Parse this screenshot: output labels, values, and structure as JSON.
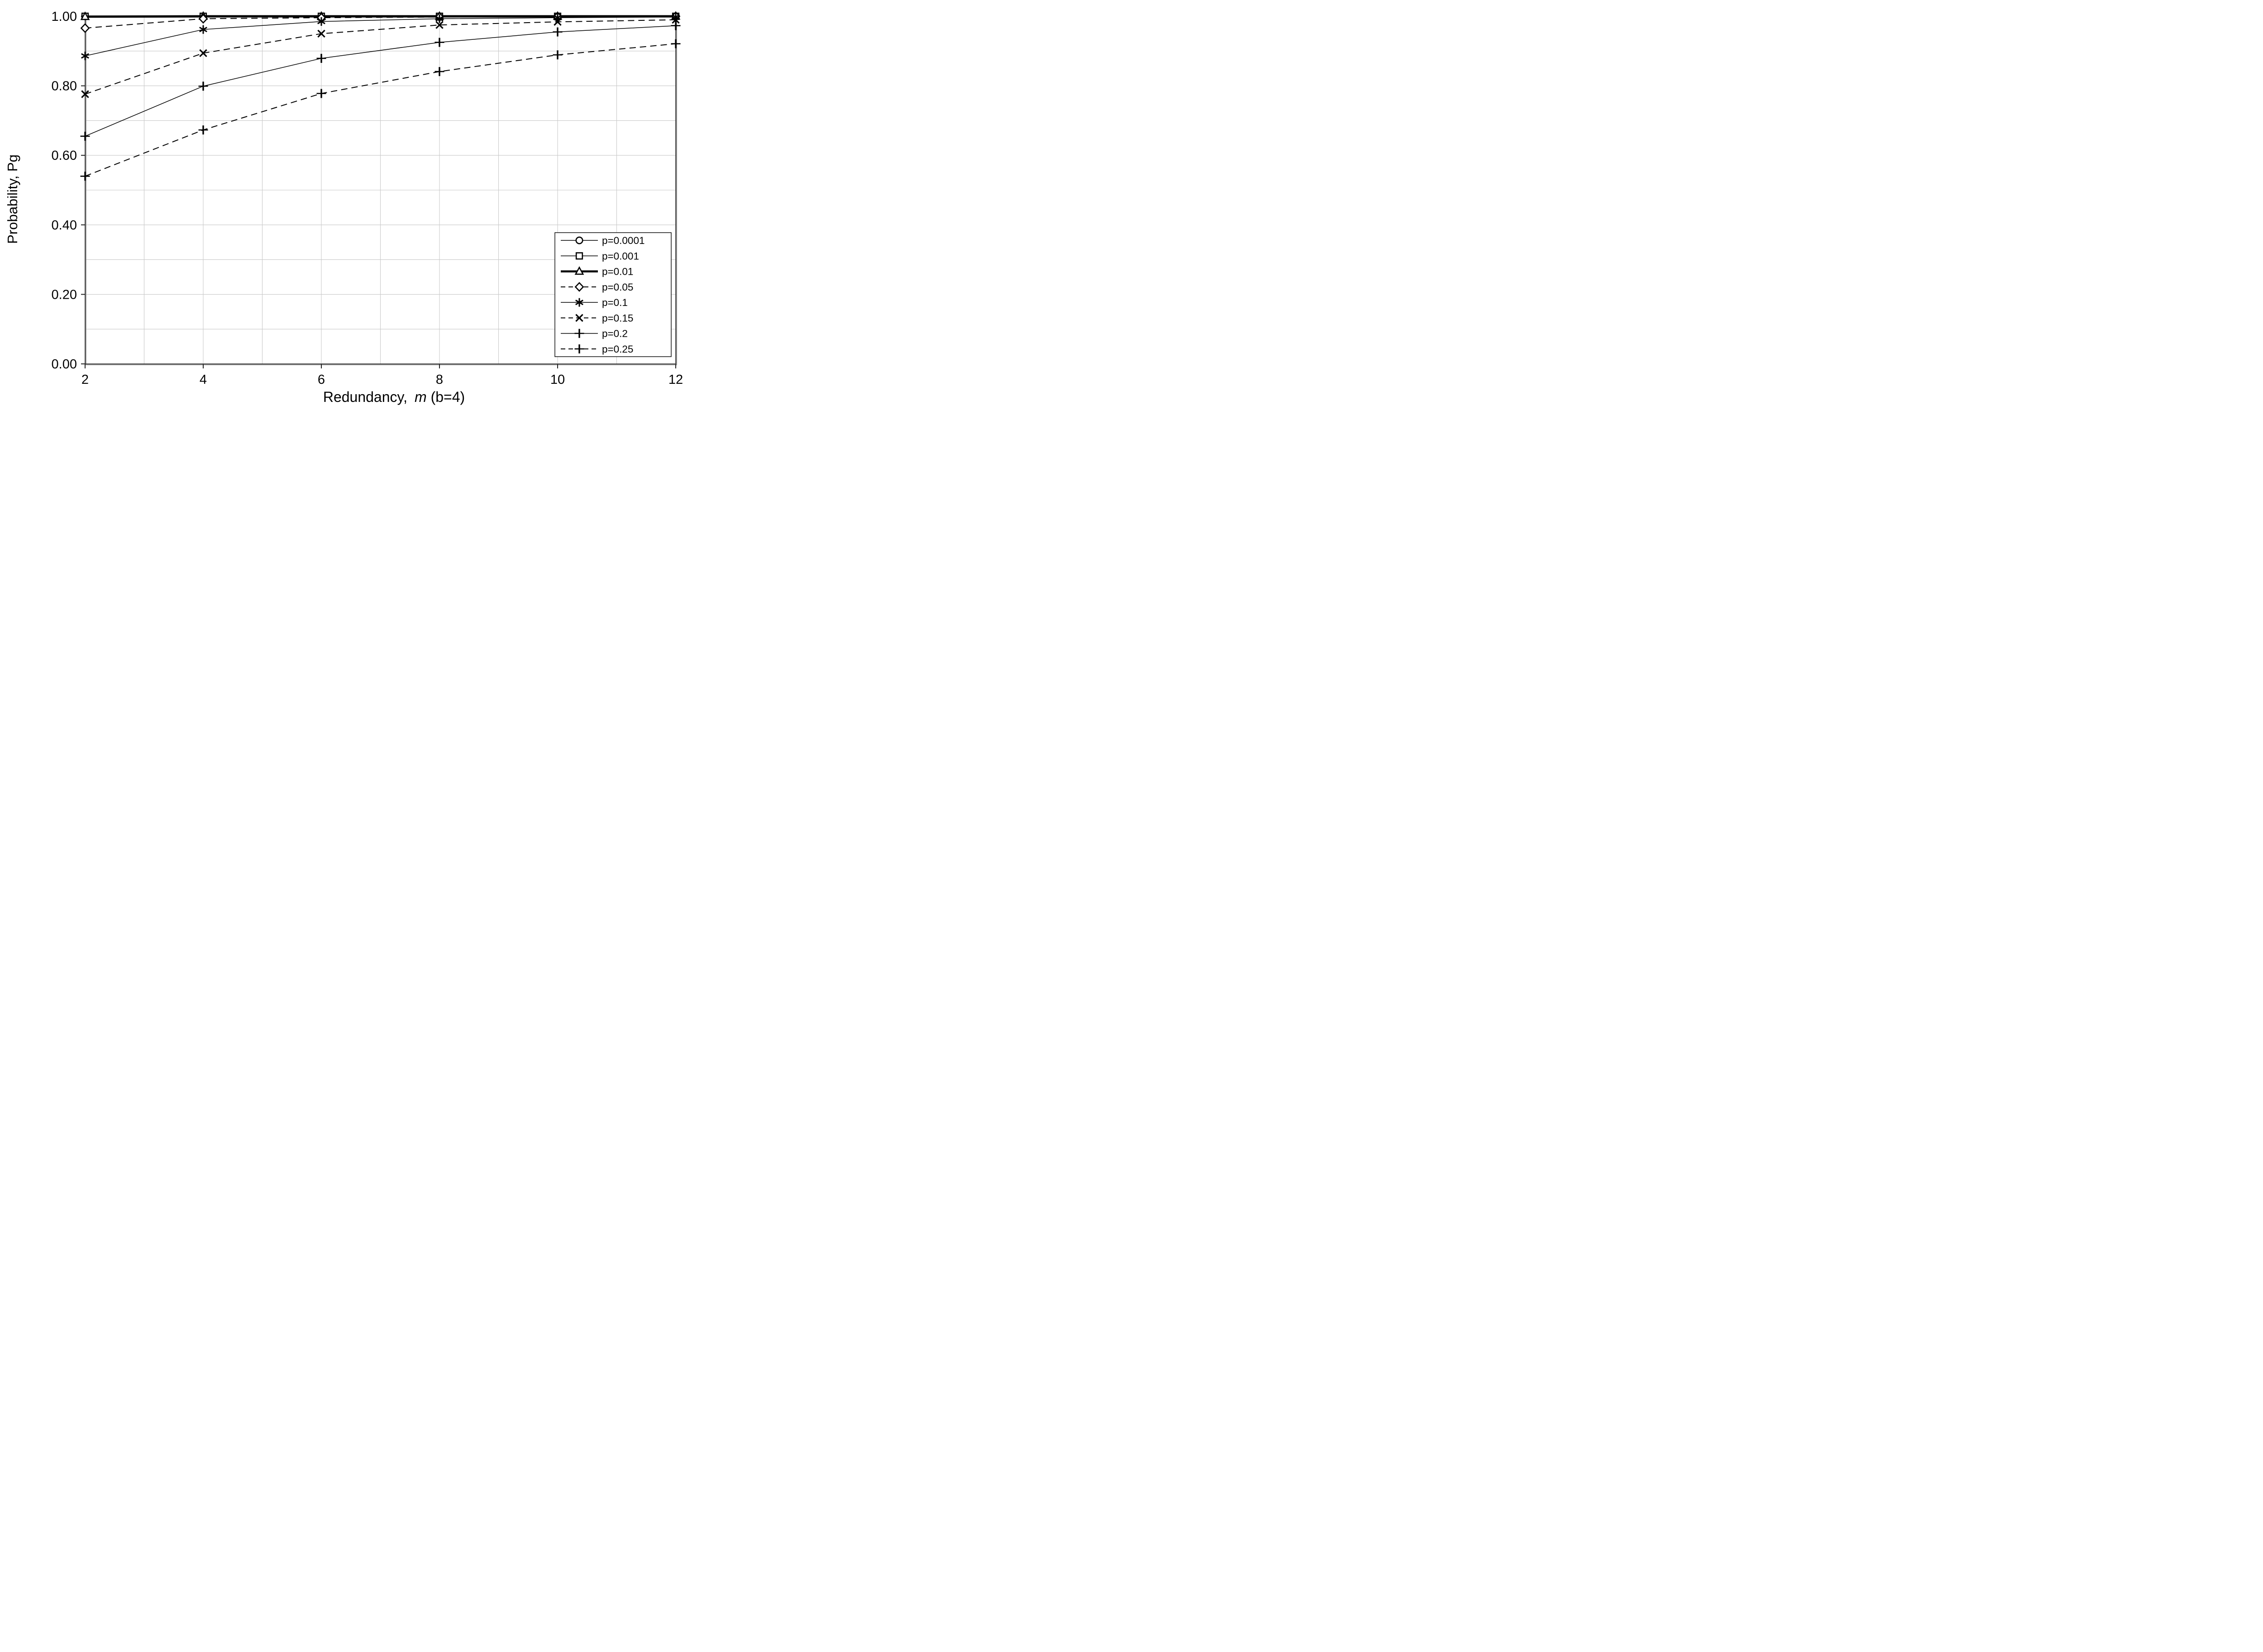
{
  "chart_data": {
    "type": "line",
    "title": "",
    "xlabel": {
      "prefix": "Redundancy,",
      "italic": "m",
      "suffix": "(b=4)",
      "full": "Redundancy,  m (b=4)"
    },
    "ylabel": "Probability,  Pg",
    "x": [
      2,
      4,
      6,
      8,
      10,
      12
    ],
    "xlim": [
      2,
      12
    ],
    "ylim": [
      0.0,
      1.0
    ],
    "x_tick_labels": [
      "2",
      "4",
      "6",
      "8",
      "10",
      "12"
    ],
    "y_tick_values": [
      0.0,
      0.2,
      0.4,
      0.6,
      0.8,
      1.0
    ],
    "y_tick_labels": [
      "0.00",
      "0.20",
      "0.40",
      "0.60",
      "0.80",
      "1.00"
    ],
    "grid": {
      "x_minor_step": 1,
      "y_minor_step": 0.1,
      "on": true
    },
    "legend_position": "lower-right",
    "series": [
      {
        "name": "p=0.0001",
        "marker": "circle",
        "line": "solid",
        "weight": "thin",
        "values": [
          1.0,
          1.0,
          1.0,
          1.0,
          1.0,
          1.0
        ]
      },
      {
        "name": "p=0.001",
        "marker": "square",
        "line": "solid",
        "weight": "thin",
        "values": [
          1.0,
          1.0,
          1.0,
          1.0,
          1.0,
          1.0
        ]
      },
      {
        "name": "p=0.01",
        "marker": "triangle",
        "line": "solid",
        "weight": "thick",
        "values": [
          0.999,
          1.0,
          1.0,
          1.0,
          1.0,
          1.0
        ]
      },
      {
        "name": "p=0.05",
        "marker": "diamond",
        "line": "dashed",
        "weight": "thin",
        "values": [
          0.966,
          0.993,
          0.996,
          0.998,
          0.999,
          1.0
        ]
      },
      {
        "name": "p=0.1",
        "marker": "star",
        "line": "solid",
        "weight": "thin",
        "values": [
          0.886,
          0.962,
          0.985,
          0.993,
          0.996,
          0.998
        ]
      },
      {
        "name": "p=0.15",
        "marker": "x",
        "line": "dashed",
        "weight": "thin",
        "values": [
          0.776,
          0.894,
          0.95,
          0.975,
          0.984,
          0.99
        ]
      },
      {
        "name": "p=0.2",
        "marker": "plus",
        "line": "solid",
        "weight": "thin",
        "values": [
          0.655,
          0.799,
          0.879,
          0.925,
          0.955,
          0.973
        ]
      },
      {
        "name": "p=0.25",
        "marker": "plus",
        "line": "dashed",
        "weight": "thin",
        "values": [
          0.54,
          0.673,
          0.778,
          0.841,
          0.889,
          0.921
        ]
      }
    ],
    "colors": {
      "series": "#000000",
      "grid": "#c9c9c9",
      "frame_gray": "#8c8c8c",
      "frame_black": "#1a1a1a",
      "background": "#ffffff",
      "legend_border": "#000000"
    }
  }
}
